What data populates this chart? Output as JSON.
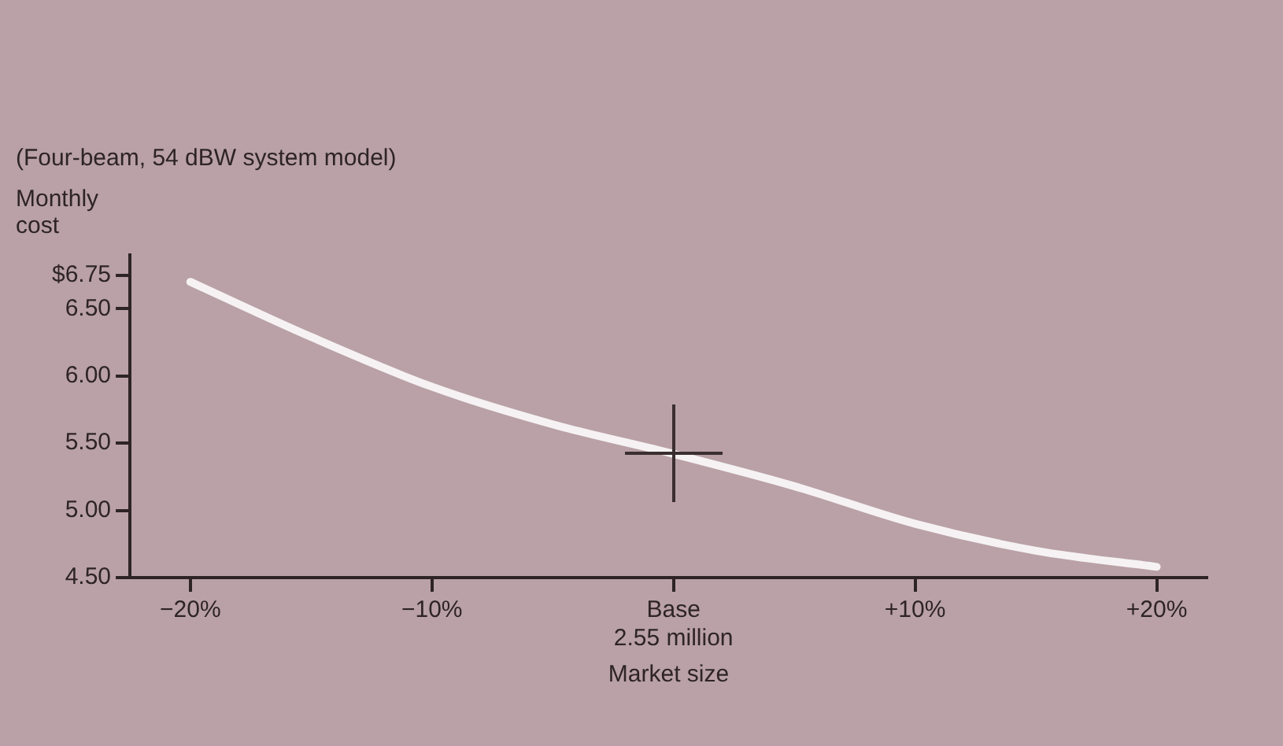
{
  "chart_data": {
    "type": "line",
    "title": "(Four-beam, 54 dBW system model)",
    "ylabel": "Monthly cost",
    "xlabel": "Market size",
    "x": [
      -20,
      -15,
      -10,
      -5,
      0,
      5,
      10,
      15,
      20
    ],
    "series": [
      {
        "color": "#f6f2f3",
        "values": [
          6.7,
          6.29,
          5.92,
          5.64,
          5.42,
          5.18,
          4.9,
          4.7,
          4.58
        ]
      }
    ],
    "xlim": [
      -22.5,
      22.1
    ],
    "xticks": [
      {
        "value": -20,
        "label": "−20%"
      },
      {
        "value": -10,
        "label": "−10%"
      },
      {
        "value": 0,
        "label": "Base\n2.55 million"
      },
      {
        "value": 10,
        "label": "+10%"
      },
      {
        "value": 20,
        "label": "+20%"
      }
    ],
    "ylim": [
      4.5,
      6.9
    ],
    "yticks": [
      {
        "value": 4.5,
        "label": "4.50"
      },
      {
        "value": 5,
        "label": "5.00"
      },
      {
        "value": 5.5,
        "label": "5.50"
      },
      {
        "value": 6,
        "label": "6.00"
      },
      {
        "value": 6.5,
        "label": "6.50"
      },
      {
        "value": 6.75,
        "label": "$6.75"
      }
    ],
    "grid": false,
    "legend": false
  }
}
